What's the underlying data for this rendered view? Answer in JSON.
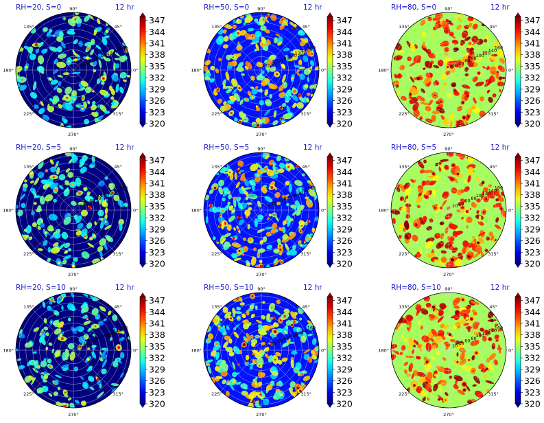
{
  "figure": {
    "time_label": "12 hr",
    "angle_labels": [
      "90°",
      "45°",
      "0°",
      "315°",
      "270°",
      "225°",
      "180°",
      "135°"
    ],
    "radial_labels": [
      "20",
      "40",
      "60",
      "80",
      "100",
      "120",
      "140",
      "160"
    ],
    "colorbar_ticks": [
      "320",
      "323",
      "326",
      "329",
      "332",
      "335",
      "338",
      "341",
      "344",
      "347"
    ],
    "colormap": "jet",
    "title_color": "#1a1acc"
  },
  "chart_data": [
    {
      "type": "heatmap",
      "projection": "polar",
      "title": "RH=20, S=0",
      "annotation": "12 hr",
      "background_value": 320,
      "value_range": [
        320,
        348
      ],
      "radial_range": [
        0,
        170
      ],
      "colorbar_ticks": [
        320,
        323,
        326,
        329,
        332,
        335,
        338,
        341,
        344,
        347
      ]
    },
    {
      "type": "heatmap",
      "projection": "polar",
      "title": "RH=50, S=0",
      "annotation": "12 hr",
      "background_value": 324,
      "value_range": [
        320,
        348
      ],
      "radial_range": [
        0,
        170
      ],
      "colorbar_ticks": [
        320,
        323,
        326,
        329,
        332,
        335,
        338,
        341,
        344,
        347
      ]
    },
    {
      "type": "heatmap",
      "projection": "polar",
      "title": "RH=80, S=0",
      "annotation": "12 hr",
      "background_value": 335,
      "value_range": [
        320,
        348
      ],
      "radial_range": [
        0,
        170
      ],
      "colorbar_ticks": [
        320,
        323,
        326,
        329,
        332,
        335,
        338,
        341,
        344,
        347
      ]
    },
    {
      "type": "heatmap",
      "projection": "polar",
      "title": "RH=20, S=5",
      "annotation": "12 hr",
      "background_value": 320,
      "value_range": [
        320,
        348
      ],
      "radial_range": [
        0,
        170
      ],
      "colorbar_ticks": [
        320,
        323,
        326,
        329,
        332,
        335,
        338,
        341,
        344,
        347
      ]
    },
    {
      "type": "heatmap",
      "projection": "polar",
      "title": "RH=50, S=5",
      "annotation": "12 hr",
      "background_value": 324,
      "value_range": [
        320,
        348
      ],
      "radial_range": [
        0,
        170
      ],
      "colorbar_ticks": [
        320,
        323,
        326,
        329,
        332,
        335,
        338,
        341,
        344,
        347
      ]
    },
    {
      "type": "heatmap",
      "projection": "polar",
      "title": "RH=80, S=5",
      "annotation": "12 hr",
      "background_value": 335,
      "value_range": [
        320,
        348
      ],
      "radial_range": [
        0,
        170
      ],
      "colorbar_ticks": [
        320,
        323,
        326,
        329,
        332,
        335,
        338,
        341,
        344,
        347
      ]
    },
    {
      "type": "heatmap",
      "projection": "polar",
      "title": "RH=20, S=10",
      "annotation": "12 hr",
      "background_value": 320,
      "value_range": [
        320,
        348
      ],
      "radial_range": [
        0,
        170
      ],
      "colorbar_ticks": [
        320,
        323,
        326,
        329,
        332,
        335,
        338,
        341,
        344,
        347
      ]
    },
    {
      "type": "heatmap",
      "projection": "polar",
      "title": "RH=50, S=10",
      "annotation": "12 hr",
      "background_value": 324,
      "value_range": [
        320,
        348
      ],
      "radial_range": [
        0,
        170
      ],
      "colorbar_ticks": [
        320,
        323,
        326,
        329,
        332,
        335,
        338,
        341,
        344,
        347
      ]
    },
    {
      "type": "heatmap",
      "projection": "polar",
      "title": "RH=80, S=10",
      "annotation": "12 hr",
      "background_value": 335,
      "value_range": [
        320,
        348
      ],
      "radial_range": [
        0,
        170
      ],
      "colorbar_ticks": [
        320,
        323,
        326,
        329,
        332,
        335,
        338,
        341,
        344,
        347
      ]
    }
  ]
}
